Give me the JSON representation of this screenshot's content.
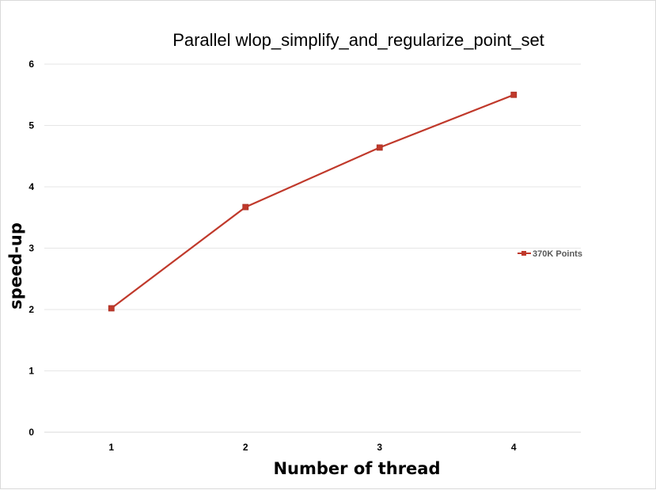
{
  "chart_data": {
    "type": "line",
    "title": "Parallel wlop_simplify_and_regularize_point_set",
    "xlabel": "Number of thread",
    "ylabel": "speed-up",
    "categories": [
      "1",
      "2",
      "3",
      "4"
    ],
    "ylim": [
      0,
      6
    ],
    "yticks": [
      "0",
      "1",
      "2",
      "3",
      "4",
      "5",
      "6"
    ],
    "grid": true,
    "legend_position": "right",
    "series": [
      {
        "name": "370K Points",
        "color": "#c0392b",
        "values": [
          2.02,
          3.67,
          4.64,
          5.5
        ]
      }
    ]
  }
}
